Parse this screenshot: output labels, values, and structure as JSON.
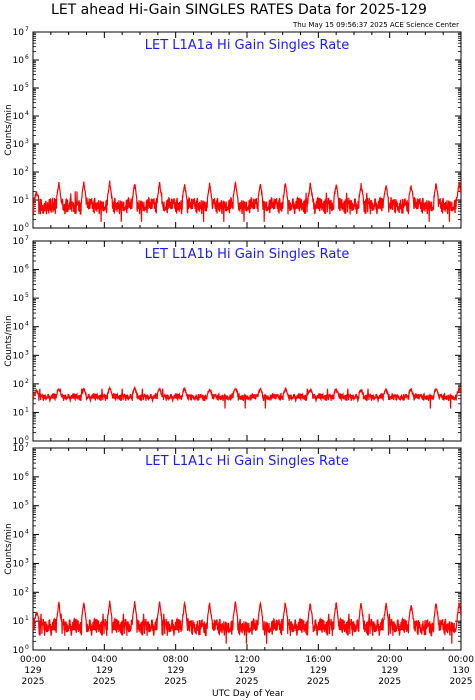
{
  "header": {
    "title": "LET ahead Hi-Gain SINGLES RATES Data for 2025-129",
    "timestamp": "Thu May 15 09:56:37 2025 ACE Science Center"
  },
  "colors": {
    "series": "#ff0000",
    "panel_title": "#1a1aff",
    "axes": "#000000"
  },
  "chart_data": [
    {
      "type": "line",
      "title": "LET L1A1a Hi Gain Singles Rate",
      "ylabel": "Counts/min",
      "yscale": "log",
      "ylim": [
        1,
        10000000
      ],
      "y_tick_exponents": [
        0,
        1,
        2,
        3,
        4,
        5,
        6,
        7
      ],
      "xlim": [
        0,
        24
      ],
      "x_unit": "hours UTC, day 129 of 2025",
      "baseline_range": [
        3,
        12
      ],
      "spike_hours": [
        0.2,
        1.45,
        2.85,
        4.3,
        5.7,
        7.1,
        8.5,
        9.9,
        11.35,
        12.75,
        14.15,
        15.55,
        17.0,
        18.4,
        19.8,
        21.2,
        22.6,
        23.9
      ],
      "spike_peaks": [
        18,
        45,
        40,
        45,
        38,
        42,
        35,
        38,
        40,
        36,
        38,
        37,
        36,
        35,
        34,
        33,
        36,
        45
      ]
    },
    {
      "type": "line",
      "title": "LET L1A1b Hi Gain Singles Rate",
      "ylabel": "Counts/min",
      "yscale": "log",
      "ylim": [
        1,
        10000000
      ],
      "y_tick_exponents": [
        0,
        1,
        2,
        3,
        4,
        5,
        6,
        7
      ],
      "xlim": [
        0,
        24
      ],
      "x_unit": "hours UTC, day 129 of 2025",
      "baseline_range": [
        25,
        45
      ],
      "spike_hours": [
        0.2,
        1.45,
        2.85,
        4.3,
        5.7,
        7.1,
        8.5,
        9.9,
        11.35,
        12.75,
        14.15,
        15.55,
        17.0,
        18.4,
        19.8,
        21.2,
        22.6,
        23.9
      ],
      "spike_peaks": [
        55,
        70,
        70,
        68,
        68,
        68,
        66,
        66,
        66,
        65,
        66,
        65,
        65,
        64,
        64,
        64,
        66,
        70
      ]
    },
    {
      "type": "line",
      "title": "LET L1A1c Hi Gain Singles Rate",
      "ylabel": "Counts/min",
      "yscale": "log",
      "ylim": [
        1,
        10000000
      ],
      "y_tick_exponents": [
        0,
        1,
        2,
        3,
        4,
        5,
        6,
        7
      ],
      "xlim": [
        0,
        24
      ],
      "x_unit": "hours UTC, day 129 of 2025",
      "baseline_range": [
        3,
        12
      ],
      "spike_hours": [
        0.2,
        1.45,
        2.85,
        4.3,
        5.7,
        7.1,
        8.5,
        9.9,
        11.35,
        12.75,
        14.15,
        15.55,
        17.0,
        18.4,
        19.8,
        21.2,
        22.6,
        23.9
      ],
      "spike_peaks": [
        20,
        45,
        45,
        45,
        45,
        45,
        42,
        45,
        45,
        42,
        45,
        42,
        42,
        42,
        40,
        40,
        42,
        45
      ]
    }
  ],
  "x_axis": {
    "label": "UTC Day of Year",
    "ticks": [
      {
        "hour": 0,
        "time": "00:00",
        "day": "129",
        "year": "2025"
      },
      {
        "hour": 4,
        "time": "04:00",
        "day": "129",
        "year": "2025"
      },
      {
        "hour": 8,
        "time": "08:00",
        "day": "129",
        "year": "2025"
      },
      {
        "hour": 12,
        "time": "12:00",
        "day": "129",
        "year": "2025"
      },
      {
        "hour": 16,
        "time": "16:00",
        "day": "129",
        "year": "2025"
      },
      {
        "hour": 20,
        "time": "20:00",
        "day": "129",
        "year": "2025"
      },
      {
        "hour": 24,
        "time": "00:00",
        "day": "130",
        "year": "2025"
      }
    ]
  }
}
